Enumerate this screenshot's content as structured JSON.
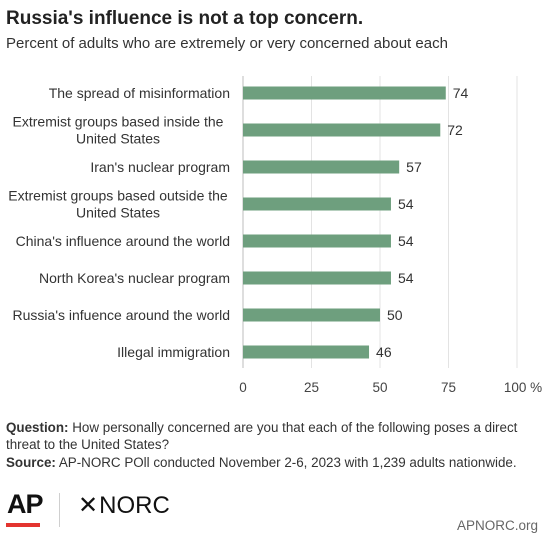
{
  "title": "Russia's influence is not a top concern.",
  "subtitle": "Percent of adults who are extremely or very concerned about each",
  "chart_data": {
    "type": "bar",
    "orientation": "horizontal",
    "categories": [
      [
        "The spread of misinformation"
      ],
      [
        "Extremist groups based inside the",
        "United States"
      ],
      [
        "Iran's nuclear program"
      ],
      [
        "Extremist groups based outside the",
        "United States"
      ],
      [
        "China's influence around the world"
      ],
      [
        "North Korea's nuclear program"
      ],
      [
        "Russia's infuence around the world"
      ],
      [
        "Illegal immigration"
      ]
    ],
    "values": [
      74,
      72,
      57,
      54,
      54,
      54,
      50,
      46
    ],
    "xlim": [
      0,
      100
    ],
    "xticks": [
      "0",
      "25",
      "50",
      "75",
      "100 %"
    ],
    "xtick_values": [
      0,
      25,
      50,
      75,
      100
    ],
    "grid": true,
    "bar_color": "#6e9f7e"
  },
  "notes": {
    "question_label": "Question:",
    "question_text": "How personally concerned are you that each of the following poses a direct threat to the United States?",
    "source_label": "Source:",
    "source_text": "AP-NORC POll conducted November 2-6, 2023 with 1,239 adults nationwide."
  },
  "logos": {
    "ap": "AP",
    "norc_star": "✕",
    "norc": "NORC",
    "accent": "#e3342f"
  },
  "footer": {
    "url": "APNORC.org"
  }
}
